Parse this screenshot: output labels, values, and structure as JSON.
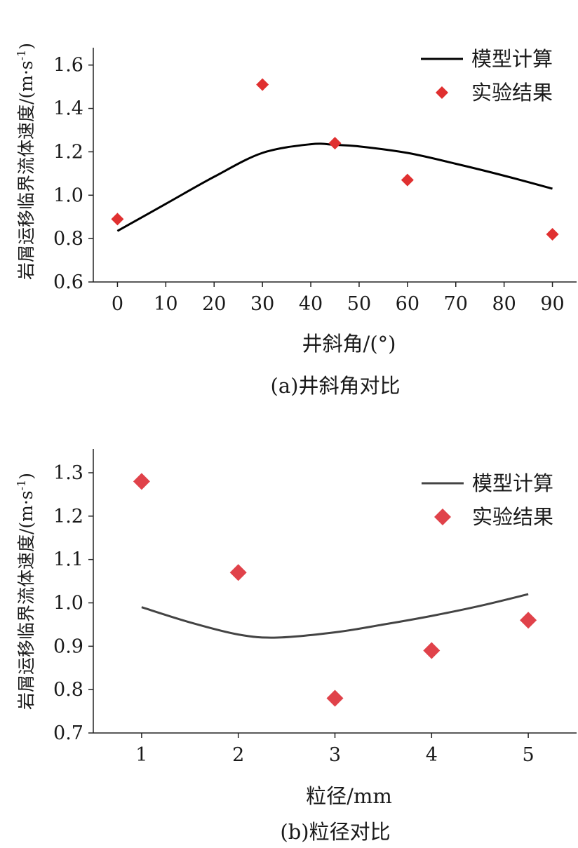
{
  "charts": [
    {
      "caption": "(a)井斜角对比",
      "chart_data": {
        "type": "line+scatter",
        "xlabel": "井斜角/(°)",
        "ylabel": "岩屑运移临界流体速度/(m·s⁻¹)",
        "ylabel_main": "岩屑运移临界流体速度/(m·",
        "ylabel_unit": "s",
        "ylabel_sup": "-1",
        "ylabel_close": ")",
        "xlim": [
          -5,
          95
        ],
        "ylim": [
          0.6,
          1.68
        ],
        "xticks": [
          0,
          10,
          20,
          30,
          40,
          50,
          60,
          70,
          80,
          90
        ],
        "xtick_labels": [
          "0",
          "10",
          "20",
          "30",
          "40",
          "50",
          "60",
          "70",
          "80",
          "90"
        ],
        "yticks": [
          0.6,
          0.8,
          1.0,
          1.2,
          1.4,
          1.6
        ],
        "ytick_labels": [
          "0.6",
          "0.8",
          "1.0",
          "1.2",
          "1.4",
          "1.6"
        ],
        "legend_position": "top-right",
        "series": [
          {
            "name": "模型计算",
            "kind": "line",
            "color": "#000000",
            "x": [
              0,
              10,
              20,
              30,
              40,
              45,
              50,
              60,
              70,
              80,
              90
            ],
            "y": [
              0.835,
              0.96,
              1.085,
              1.195,
              1.235,
              1.232,
              1.225,
              1.195,
              1.145,
              1.09,
              1.03
            ]
          },
          {
            "name": "实验结果",
            "kind": "scatter",
            "marker": "diamond",
            "color": "#e03030",
            "x": [
              0,
              30,
              45,
              60,
              90
            ],
            "y": [
              0.89,
              1.51,
              1.24,
              1.07,
              0.82
            ]
          }
        ]
      }
    },
    {
      "caption": "(b)粒径对比",
      "chart_data": {
        "type": "line+scatter",
        "xlabel": "粒径/mm",
        "ylabel": "岩屑运移临界流体速度/(m·s⁻¹)",
        "ylabel_main": "岩屑运移临界流体速度/(m·",
        "ylabel_unit": "s",
        "ylabel_sup": "-1",
        "ylabel_close": ")",
        "xlim": [
          0.5,
          5.5
        ],
        "ylim": [
          0.7,
          1.355
        ],
        "xticks": [
          1,
          2,
          3,
          4,
          5
        ],
        "xtick_labels": [
          "1",
          "2",
          "3",
          "4",
          "5"
        ],
        "yticks": [
          0.7,
          0.8,
          0.9,
          1.0,
          1.1,
          1.2,
          1.3
        ],
        "ytick_labels": [
          "0.7",
          "0.8",
          "0.9",
          "1.0",
          "1.1",
          "1.2",
          "1.3"
        ],
        "legend_position": "top-right",
        "series": [
          {
            "name": "模型计算",
            "kind": "line",
            "color": "#444444",
            "x": [
              1,
              1.5,
              2,
              2.4,
              3,
              3.5,
              4,
              4.5,
              5
            ],
            "y": [
              0.99,
              0.955,
              0.927,
              0.92,
              0.932,
              0.95,
              0.97,
              0.993,
              1.02
            ]
          },
          {
            "name": "实验结果",
            "kind": "scatter",
            "marker": "diamond",
            "color": "#e0424a",
            "x": [
              1,
              2,
              3,
              4,
              5
            ],
            "y": [
              1.28,
              1.07,
              0.78,
              0.89,
              0.96
            ]
          }
        ]
      }
    }
  ]
}
